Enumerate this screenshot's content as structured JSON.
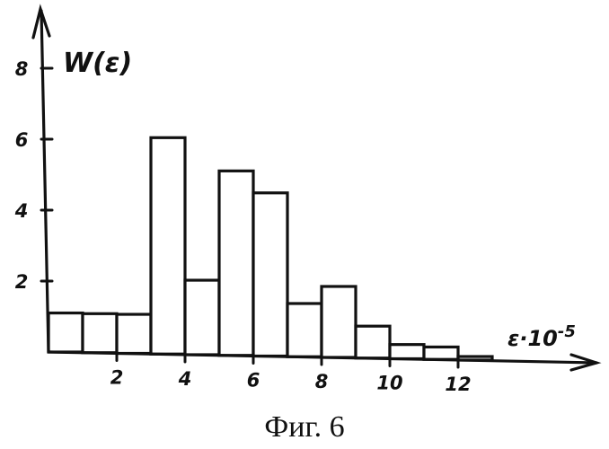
{
  "chart_data": {
    "type": "bar",
    "title": "",
    "ylabel": "W(ε)",
    "xlabel_base": "ε·10",
    "xlabel_exponent": "-5",
    "caption": "Фиг. 6",
    "xlim": [
      0,
      13
    ],
    "ylim": [
      0,
      9
    ],
    "x_ticks": [
      {
        "value": 2,
        "label": "2"
      },
      {
        "value": 4,
        "label": "4"
      },
      {
        "value": 6,
        "label": "6"
      },
      {
        "value": 8,
        "label": "8"
      },
      {
        "value": 10,
        "label": "10"
      },
      {
        "value": 12,
        "label": "12"
      }
    ],
    "y_ticks": [
      {
        "value": 2,
        "label": "2"
      },
      {
        "value": 4,
        "label": "4"
      },
      {
        "value": 6,
        "label": "6"
      },
      {
        "value": 8,
        "label": "8"
      }
    ],
    "bars": [
      {
        "x0": 0,
        "x1": 1,
        "value": 1.1
      },
      {
        "x0": 1,
        "x1": 2,
        "value": 1.1
      },
      {
        "x0": 2,
        "x1": 3,
        "value": 1.1
      },
      {
        "x0": 3,
        "x1": 4,
        "value": 6.1
      },
      {
        "x0": 4,
        "x1": 5,
        "value": 2.1
      },
      {
        "x0": 5,
        "x1": 6,
        "value": 5.2
      },
      {
        "x0": 6,
        "x1": 7,
        "value": 4.6
      },
      {
        "x0": 7,
        "x1": 8,
        "value": 1.5
      },
      {
        "x0": 8,
        "x1": 9,
        "value": 2.0
      },
      {
        "x0": 9,
        "x1": 10,
        "value": 0.9
      },
      {
        "x0": 10,
        "x1": 11,
        "value": 0.4
      },
      {
        "x0": 11,
        "x1": 12,
        "value": 0.35
      },
      {
        "x0": 12,
        "x1": 13,
        "value": 0.1
      }
    ],
    "grid": false,
    "legend": "none"
  }
}
